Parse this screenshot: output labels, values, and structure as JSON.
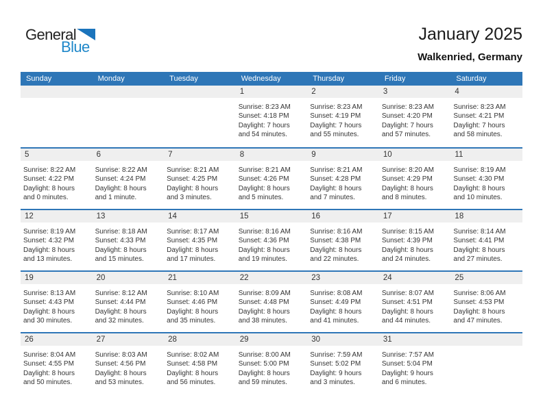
{
  "logo": {
    "general": "General",
    "blue": "Blue"
  },
  "header": {
    "title": "January 2025",
    "subtitle": "Walkenried, Germany"
  },
  "colors": {
    "header_bar": "#2E76B7",
    "day_band": "#EFEFEF",
    "separator": "#2E76B7",
    "logo_blue": "#1E87C9",
    "logo_triangle": "#1B74BC",
    "weekday_text": "#FFFFFF"
  },
  "weekdays": [
    "Sunday",
    "Monday",
    "Tuesday",
    "Wednesday",
    "Thursday",
    "Friday",
    "Saturday"
  ],
  "calendar": {
    "weeks": [
      [
        null,
        null,
        null,
        {
          "day": "1",
          "lines": [
            "Sunrise: 8:23 AM",
            "Sunset: 4:18 PM",
            "Daylight: 7 hours",
            "and 54 minutes."
          ]
        },
        {
          "day": "2",
          "lines": [
            "Sunrise: 8:23 AM",
            "Sunset: 4:19 PM",
            "Daylight: 7 hours",
            "and 55 minutes."
          ]
        },
        {
          "day": "3",
          "lines": [
            "Sunrise: 8:23 AM",
            "Sunset: 4:20 PM",
            "Daylight: 7 hours",
            "and 57 minutes."
          ]
        },
        {
          "day": "4",
          "lines": [
            "Sunrise: 8:23 AM",
            "Sunset: 4:21 PM",
            "Daylight: 7 hours",
            "and 58 minutes."
          ]
        }
      ],
      [
        {
          "day": "5",
          "lines": [
            "Sunrise: 8:22 AM",
            "Sunset: 4:22 PM",
            "Daylight: 8 hours",
            "and 0 minutes."
          ]
        },
        {
          "day": "6",
          "lines": [
            "Sunrise: 8:22 AM",
            "Sunset: 4:24 PM",
            "Daylight: 8 hours",
            "and 1 minute."
          ]
        },
        {
          "day": "7",
          "lines": [
            "Sunrise: 8:21 AM",
            "Sunset: 4:25 PM",
            "Daylight: 8 hours",
            "and 3 minutes."
          ]
        },
        {
          "day": "8",
          "lines": [
            "Sunrise: 8:21 AM",
            "Sunset: 4:26 PM",
            "Daylight: 8 hours",
            "and 5 minutes."
          ]
        },
        {
          "day": "9",
          "lines": [
            "Sunrise: 8:21 AM",
            "Sunset: 4:28 PM",
            "Daylight: 8 hours",
            "and 7 minutes."
          ]
        },
        {
          "day": "10",
          "lines": [
            "Sunrise: 8:20 AM",
            "Sunset: 4:29 PM",
            "Daylight: 8 hours",
            "and 8 minutes."
          ]
        },
        {
          "day": "11",
          "lines": [
            "Sunrise: 8:19 AM",
            "Sunset: 4:30 PM",
            "Daylight: 8 hours",
            "and 10 minutes."
          ]
        }
      ],
      [
        {
          "day": "12",
          "lines": [
            "Sunrise: 8:19 AM",
            "Sunset: 4:32 PM",
            "Daylight: 8 hours",
            "and 13 minutes."
          ]
        },
        {
          "day": "13",
          "lines": [
            "Sunrise: 8:18 AM",
            "Sunset: 4:33 PM",
            "Daylight: 8 hours",
            "and 15 minutes."
          ]
        },
        {
          "day": "14",
          "lines": [
            "Sunrise: 8:17 AM",
            "Sunset: 4:35 PM",
            "Daylight: 8 hours",
            "and 17 minutes."
          ]
        },
        {
          "day": "15",
          "lines": [
            "Sunrise: 8:16 AM",
            "Sunset: 4:36 PM",
            "Daylight: 8 hours",
            "and 19 minutes."
          ]
        },
        {
          "day": "16",
          "lines": [
            "Sunrise: 8:16 AM",
            "Sunset: 4:38 PM",
            "Daylight: 8 hours",
            "and 22 minutes."
          ]
        },
        {
          "day": "17",
          "lines": [
            "Sunrise: 8:15 AM",
            "Sunset: 4:39 PM",
            "Daylight: 8 hours",
            "and 24 minutes."
          ]
        },
        {
          "day": "18",
          "lines": [
            "Sunrise: 8:14 AM",
            "Sunset: 4:41 PM",
            "Daylight: 8 hours",
            "and 27 minutes."
          ]
        }
      ],
      [
        {
          "day": "19",
          "lines": [
            "Sunrise: 8:13 AM",
            "Sunset: 4:43 PM",
            "Daylight: 8 hours",
            "and 30 minutes."
          ]
        },
        {
          "day": "20",
          "lines": [
            "Sunrise: 8:12 AM",
            "Sunset: 4:44 PM",
            "Daylight: 8 hours",
            "and 32 minutes."
          ]
        },
        {
          "day": "21",
          "lines": [
            "Sunrise: 8:10 AM",
            "Sunset: 4:46 PM",
            "Daylight: 8 hours",
            "and 35 minutes."
          ]
        },
        {
          "day": "22",
          "lines": [
            "Sunrise: 8:09 AM",
            "Sunset: 4:48 PM",
            "Daylight: 8 hours",
            "and 38 minutes."
          ]
        },
        {
          "day": "23",
          "lines": [
            "Sunrise: 8:08 AM",
            "Sunset: 4:49 PM",
            "Daylight: 8 hours",
            "and 41 minutes."
          ]
        },
        {
          "day": "24",
          "lines": [
            "Sunrise: 8:07 AM",
            "Sunset: 4:51 PM",
            "Daylight: 8 hours",
            "and 44 minutes."
          ]
        },
        {
          "day": "25",
          "lines": [
            "Sunrise: 8:06 AM",
            "Sunset: 4:53 PM",
            "Daylight: 8 hours",
            "and 47 minutes."
          ]
        }
      ],
      [
        {
          "day": "26",
          "lines": [
            "Sunrise: 8:04 AM",
            "Sunset: 4:55 PM",
            "Daylight: 8 hours",
            "and 50 minutes."
          ]
        },
        {
          "day": "27",
          "lines": [
            "Sunrise: 8:03 AM",
            "Sunset: 4:56 PM",
            "Daylight: 8 hours",
            "and 53 minutes."
          ]
        },
        {
          "day": "28",
          "lines": [
            "Sunrise: 8:02 AM",
            "Sunset: 4:58 PM",
            "Daylight: 8 hours",
            "and 56 minutes."
          ]
        },
        {
          "day": "29",
          "lines": [
            "Sunrise: 8:00 AM",
            "Sunset: 5:00 PM",
            "Daylight: 8 hours",
            "and 59 minutes."
          ]
        },
        {
          "day": "30",
          "lines": [
            "Sunrise: 7:59 AM",
            "Sunset: 5:02 PM",
            "Daylight: 9 hours",
            "and 3 minutes."
          ]
        },
        {
          "day": "31",
          "lines": [
            "Sunrise: 7:57 AM",
            "Sunset: 5:04 PM",
            "Daylight: 9 hours",
            "and 6 minutes."
          ]
        },
        null
      ]
    ]
  }
}
